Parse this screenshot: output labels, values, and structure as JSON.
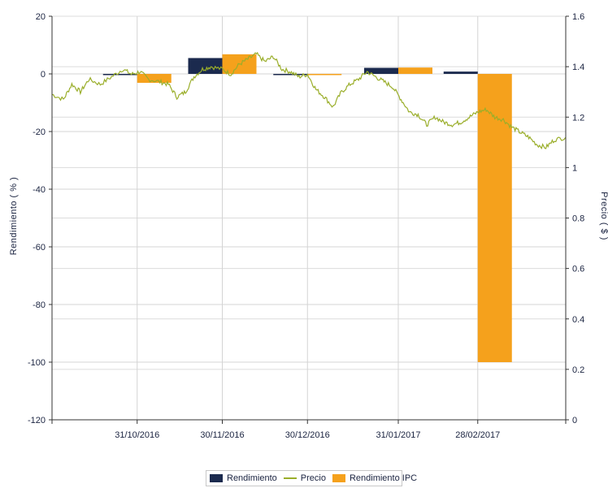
{
  "chart_data": {
    "type": "bar+line",
    "ylabel_left": "Rendimiento ( % )",
    "ylabel_right": "Precio ( $ )",
    "left_axis": {
      "min": -120,
      "max": 20,
      "ticks": [
        20,
        0,
        -20,
        -40,
        -60,
        -80,
        -100,
        -120
      ]
    },
    "right_axis": {
      "min": 0,
      "max": 1.6,
      "ticks": [
        1.6,
        1.4,
        1.2,
        1,
        0.8,
        0.6,
        0.4,
        0.2,
        0
      ]
    },
    "x_axis": {
      "start": "2016-10-01",
      "end": "2017-03-31",
      "tick_labels": [
        {
          "date": "2016-10-31",
          "label": "31/10/2016"
        },
        {
          "date": "2016-11-30",
          "label": "30/11/2016"
        },
        {
          "date": "2016-12-30",
          "label": "30/12/2016"
        },
        {
          "date": "2017-01-31",
          "label": "31/01/2017"
        },
        {
          "date": "2017-02-28",
          "label": "28/02/2017"
        }
      ]
    },
    "bars": {
      "months": [
        "2016-10-31",
        "2016-11-30",
        "2016-12-30",
        "2017-01-31",
        "2017-02-28"
      ],
      "series": [
        {
          "name": "Rendimiento",
          "color": "#1b2a4e",
          "values": [
            -0.4,
            5.5,
            -0.1,
            2.1,
            0.8
          ]
        },
        {
          "name": "Rendimiento IPC",
          "color": "#f5a11c",
          "values": [
            -3.1,
            6.8,
            -0.1,
            2.2,
            -100
          ]
        }
      ]
    },
    "line": {
      "name": "Precio",
      "color": "#9aae2a",
      "points": [
        [
          "2016-10-01",
          1.29
        ],
        [
          "2016-10-05",
          1.27
        ],
        [
          "2016-10-08",
          1.33
        ],
        [
          "2016-10-11",
          1.3
        ],
        [
          "2016-10-14",
          1.35
        ],
        [
          "2016-10-18",
          1.33
        ],
        [
          "2016-10-22",
          1.36
        ],
        [
          "2016-10-26",
          1.39
        ],
        [
          "2016-10-29",
          1.37
        ],
        [
          "2016-11-01",
          1.38
        ],
        [
          "2016-11-04",
          1.35
        ],
        [
          "2016-11-08",
          1.34
        ],
        [
          "2016-11-11",
          1.33
        ],
        [
          "2016-11-14",
          1.28
        ],
        [
          "2016-11-17",
          1.3
        ],
        [
          "2016-11-20",
          1.36
        ],
        [
          "2016-11-23",
          1.39
        ],
        [
          "2016-11-26",
          1.4
        ],
        [
          "2016-11-30",
          1.39
        ],
        [
          "2016-12-03",
          1.37
        ],
        [
          "2016-12-06",
          1.41
        ],
        [
          "2016-12-09",
          1.43
        ],
        [
          "2016-12-12",
          1.45
        ],
        [
          "2016-12-15",
          1.42
        ],
        [
          "2016-12-18",
          1.44
        ],
        [
          "2016-12-21",
          1.39
        ],
        [
          "2016-12-24",
          1.38
        ],
        [
          "2016-12-27",
          1.36
        ],
        [
          "2016-12-30",
          1.37
        ],
        [
          "2017-01-02",
          1.31
        ],
        [
          "2017-01-05",
          1.28
        ],
        [
          "2017-01-08",
          1.24
        ],
        [
          "2017-01-11",
          1.3
        ],
        [
          "2017-01-14",
          1.33
        ],
        [
          "2017-01-17",
          1.35
        ],
        [
          "2017-01-20",
          1.38
        ],
        [
          "2017-01-23",
          1.36
        ],
        [
          "2017-01-26",
          1.34
        ],
        [
          "2017-01-29",
          1.32
        ],
        [
          "2017-02-01",
          1.27
        ],
        [
          "2017-02-04",
          1.22
        ],
        [
          "2017-02-07",
          1.21
        ],
        [
          "2017-02-10",
          1.17
        ],
        [
          "2017-02-13",
          1.2
        ],
        [
          "2017-02-16",
          1.18
        ],
        [
          "2017-02-19",
          1.17
        ],
        [
          "2017-02-22",
          1.18
        ],
        [
          "2017-02-25",
          1.2
        ],
        [
          "2017-02-28",
          1.22
        ],
        [
          "2017-03-03",
          1.23
        ],
        [
          "2017-03-06",
          1.2
        ],
        [
          "2017-03-09",
          1.19
        ],
        [
          "2017-03-12",
          1.16
        ],
        [
          "2017-03-15",
          1.14
        ],
        [
          "2017-03-18",
          1.12
        ],
        [
          "2017-03-21",
          1.09
        ],
        [
          "2017-03-24",
          1.08
        ],
        [
          "2017-03-27",
          1.11
        ],
        [
          "2017-03-31",
          1.12
        ]
      ]
    },
    "legend": [
      "Rendimiento",
      "Precio",
      "Rendimiento IPC"
    ],
    "grid": true
  }
}
